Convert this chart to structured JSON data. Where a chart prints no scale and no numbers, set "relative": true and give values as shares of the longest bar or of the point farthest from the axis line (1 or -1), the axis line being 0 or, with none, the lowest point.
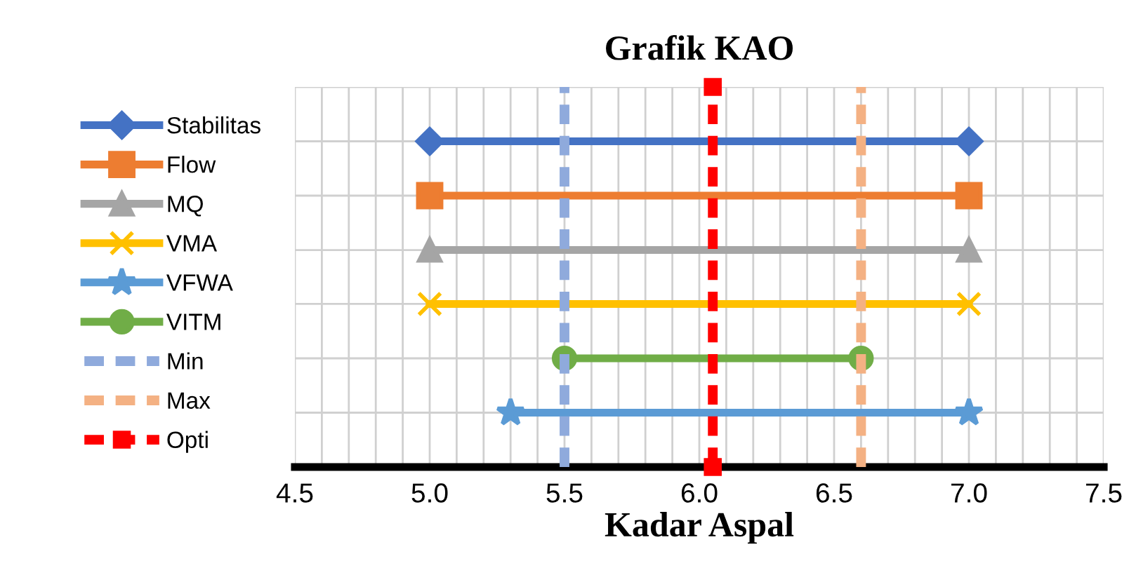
{
  "chart_data": {
    "type": "line",
    "title": "Grafik KAO",
    "xlabel": "Kadar Aspal",
    "xlim": [
      4.5,
      7.5
    ],
    "xticks": [
      {
        "value": 4.5,
        "label": "4.5"
      },
      {
        "value": 4.6,
        "label": null
      },
      {
        "value": 4.7,
        "label": null
      },
      {
        "value": 4.8,
        "label": null
      },
      {
        "value": 4.9,
        "label": null
      },
      {
        "value": 5.0,
        "label": "5.0"
      },
      {
        "value": 5.1,
        "label": null
      },
      {
        "value": 5.2,
        "label": null
      },
      {
        "value": 5.3,
        "label": null
      },
      {
        "value": 5.4,
        "label": null
      },
      {
        "value": 5.5,
        "label": "5.5"
      },
      {
        "value": 5.6,
        "label": null
      },
      {
        "value": 5.7,
        "label": null
      },
      {
        "value": 5.8,
        "label": null
      },
      {
        "value": 5.9,
        "label": null
      },
      {
        "value": 6.0,
        "label": "6.0"
      },
      {
        "value": 6.1,
        "label": null
      },
      {
        "value": 6.2,
        "label": null
      },
      {
        "value": 6.3,
        "label": null
      },
      {
        "value": 6.4,
        "label": null
      },
      {
        "value": 6.5,
        "label": "6.5"
      },
      {
        "value": 6.6,
        "label": null
      },
      {
        "value": 6.7,
        "label": null
      },
      {
        "value": 6.8,
        "label": null
      },
      {
        "value": 6.9,
        "label": null
      },
      {
        "value": 7.0,
        "label": "7.0"
      },
      {
        "value": 7.1,
        "label": null
      },
      {
        "value": 7.2,
        "label": null
      },
      {
        "value": 7.3,
        "label": null
      },
      {
        "value": 7.4,
        "label": null
      },
      {
        "value": 7.5,
        "label": "7.5"
      }
    ],
    "relative": true,
    "tick_labels": "x",
    "grid": true,
    "legend": "left",
    "series": [
      {
        "name": "Stabilitas",
        "color": "#4472c4",
        "x": [
          5.0,
          7.0
        ],
        "values": [
          0.857,
          0.857
        ],
        "marker": "diamond",
        "line_style": "solid"
      },
      {
        "name": "Flow",
        "color": "#ed7d31",
        "x": [
          5.0,
          7.0
        ],
        "values": [
          0.714,
          0.714
        ],
        "marker": "square",
        "line_style": "solid"
      },
      {
        "name": "MQ",
        "color": "#a5a5a5",
        "x": [
          5.0,
          7.0
        ],
        "values": [
          0.571,
          0.571
        ],
        "marker": "triangle",
        "line_style": "solid"
      },
      {
        "name": "VMA",
        "color": "#ffc000",
        "x": [
          5.0,
          7.0
        ],
        "values": [
          0.429,
          0.429
        ],
        "marker": "cross",
        "line_style": "solid"
      },
      {
        "name": "VFWA",
        "color": "#5b9bd5",
        "x": [
          5.3,
          7.0
        ],
        "values": [
          0.143,
          0.143
        ],
        "marker": "star",
        "line_style": "solid"
      },
      {
        "name": "VITM",
        "color": "#70ad47",
        "x": [
          5.5,
          6.6
        ],
        "values": [
          0.286,
          0.286
        ],
        "marker": "circle",
        "line_style": "solid"
      },
      {
        "name": "Min",
        "color": "#8faadc",
        "x": [
          5.5,
          5.5
        ],
        "values": [
          0,
          1
        ],
        "marker": "none",
        "line_style": "dashed"
      },
      {
        "name": "Max",
        "color": "#f4b183",
        "x": [
          6.6,
          6.6
        ],
        "values": [
          0,
          1
        ],
        "marker": "none",
        "line_style": "dashed"
      },
      {
        "name": "Opti",
        "color": "#ff0000",
        "x": [
          6.05,
          6.05
        ],
        "values": [
          0,
          1
        ],
        "marker": "square",
        "line_style": "dashed"
      }
    ]
  }
}
